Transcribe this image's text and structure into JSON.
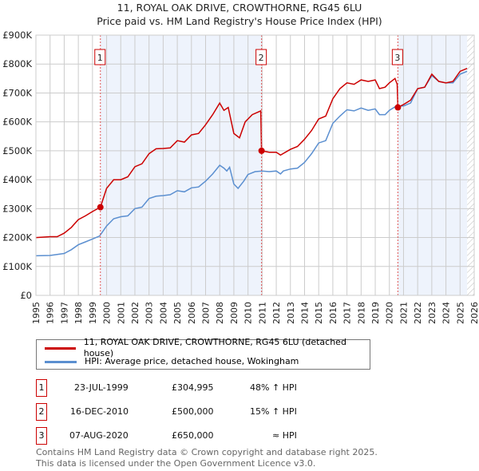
{
  "chart_data": {
    "type": "line",
    "title": "11, ROYAL OAK DRIVE, CROWTHORNE, RG45 6LU",
    "subtitle": "Price paid vs. HM Land Registry's House Price Index (HPI)",
    "xlim": [
      1995,
      2026
    ],
    "ylim": [
      0,
      900000
    ],
    "x_ticks": [
      "1995",
      "1996",
      "1997",
      "1998",
      "1999",
      "2000",
      "2001",
      "2002",
      "2003",
      "2004",
      "2005",
      "2006",
      "2007",
      "2008",
      "2009",
      "2010",
      "2011",
      "2012",
      "2013",
      "2014",
      "2015",
      "2016",
      "2017",
      "2018",
      "2019",
      "2020",
      "2021",
      "2022",
      "2023",
      "2024",
      "2025",
      "2026"
    ],
    "y_ticks": [
      {
        "v": 0,
        "label": "£0"
      },
      {
        "v": 100000,
        "label": "£100K"
      },
      {
        "v": 200000,
        "label": "£200K"
      },
      {
        "v": 300000,
        "label": "£300K"
      },
      {
        "v": 400000,
        "label": "£400K"
      },
      {
        "v": 500000,
        "label": "£500K"
      },
      {
        "v": 600000,
        "label": "£600K"
      },
      {
        "v": 700000,
        "label": "£700K"
      },
      {
        "v": 800000,
        "label": "£800K"
      },
      {
        "v": 900000,
        "label": "£900K"
      }
    ],
    "grid": true,
    "shaded_ranges": [
      [
        1999.56,
        2010.96
      ],
      [
        2020.6,
        2025.5
      ]
    ],
    "hatched_after": 2025.5,
    "series": [
      {
        "name": "11, ROYAL OAK DRIVE, CROWTHORNE, RG45 6LU (detached house)",
        "color": "#cc0000",
        "x": [
          1995,
          1996,
          1996.5,
          1997,
          1997.5,
          1998,
          1998.5,
          1999,
          1999.56,
          2000,
          2000.5,
          2001,
          2001.5,
          2002,
          2002.5,
          2003,
          2003.5,
          2004,
          2004.5,
          2005,
          2005.5,
          2006,
          2006.5,
          2007,
          2007.5,
          2008,
          2008.3,
          2008.6,
          2009,
          2009.4,
          2009.8,
          2010.3,
          2010.9,
          2010.96,
          2011.5,
          2012,
          2012.3,
          2013,
          2013.5,
          2014,
          2014.5,
          2015,
          2015.5,
          2016,
          2016.5,
          2017,
          2017.5,
          2018,
          2018.5,
          2019,
          2019.3,
          2019.7,
          2020,
          2020.4,
          2020.55,
          2020.6,
          2021,
          2021.5,
          2022,
          2022.5,
          2023,
          2023.5,
          2024,
          2024.5,
          2025,
          2025.5
        ],
        "y": [
          200,
          203,
          203,
          215,
          235,
          262,
          275,
          290,
          305,
          370,
          400,
          400,
          410,
          445,
          455,
          490,
          507,
          508,
          510,
          535,
          530,
          555,
          560,
          590,
          625,
          665,
          640,
          650,
          560,
          545,
          600,
          625,
          638,
          500,
          495,
          495,
          485,
          505,
          515,
          540,
          570,
          610,
          620,
          680,
          715,
          735,
          730,
          745,
          740,
          745,
          715,
          720,
          735,
          750,
          730,
          650,
          660,
          675,
          715,
          720,
          765,
          740,
          735,
          740,
          775,
          785
        ]
      },
      {
        "name": "HPI: Average price, detached house, Wokingham",
        "color": "#5b8fd0",
        "x": [
          1995,
          1996,
          1997,
          1997.5,
          1998,
          1998.5,
          1999,
          1999.5,
          2000,
          2000.5,
          2001,
          2001.5,
          2002,
          2002.5,
          2003,
          2003.5,
          2004,
          2004.5,
          2005,
          2005.5,
          2006,
          2006.5,
          2007,
          2007.5,
          2008,
          2008.3,
          2008.5,
          2008.7,
          2009,
          2009.3,
          2009.7,
          2010,
          2010.5,
          2011,
          2011.5,
          2012,
          2012.3,
          2012.5,
          2013,
          2013.5,
          2014,
          2014.5,
          2015,
          2015.5,
          2016,
          2016.5,
          2017,
          2017.5,
          2018,
          2018.5,
          2019,
          2019.3,
          2019.7,
          2020,
          2020.5,
          2021,
          2021.5,
          2022,
          2022.5,
          2023,
          2023.5,
          2024,
          2024.5,
          2025,
          2025.5
        ],
        "y": [
          137,
          138,
          145,
          158,
          175,
          185,
          195,
          205,
          240,
          265,
          272,
          275,
          300,
          305,
          335,
          343,
          345,
          348,
          362,
          358,
          372,
          375,
          395,
          420,
          450,
          440,
          430,
          443,
          385,
          370,
          395,
          418,
          428,
          430,
          428,
          430,
          420,
          430,
          437,
          440,
          460,
          490,
          527,
          535,
          595,
          620,
          642,
          638,
          648,
          640,
          645,
          625,
          625,
          640,
          655,
          655,
          665,
          715,
          720,
          760,
          740,
          735,
          735,
          765,
          775
        ]
      }
    ],
    "y_units": "thousands GBP",
    "sales": [
      {
        "id": "1",
        "x": 1999.56,
        "price": 304995,
        "date": "23-JUL-1999",
        "price_label": "£304,995",
        "hpi": "48% ↑ HPI"
      },
      {
        "id": "2",
        "x": 2010.96,
        "price": 500000,
        "date": "16-DEC-2010",
        "price_label": "£500,000",
        "hpi": "15% ↑ HPI"
      },
      {
        "id": "3",
        "x": 2020.6,
        "price": 650000,
        "date": "07-AUG-2020",
        "price_label": "£650,000",
        "hpi": "≈ HPI"
      }
    ]
  },
  "footer": {
    "line1": "Contains HM Land Registry data © Crown copyright and database right 2025.",
    "line2": "This data is licensed under the Open Government Licence v3.0."
  }
}
